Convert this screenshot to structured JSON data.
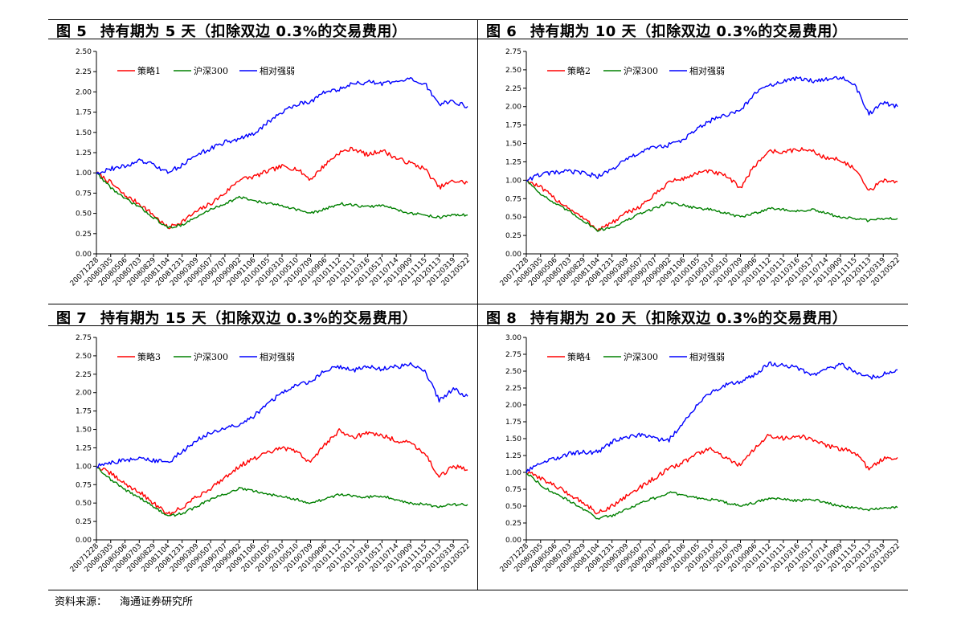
{
  "source": {
    "label": "资料来源：",
    "text": "海通证券研究所"
  },
  "series_colors": {
    "strategy": "#ff0000",
    "hs300": "#008000",
    "relative": "#0000ff"
  },
  "panels": [
    {
      "figure": "图 5",
      "title": "持有期为 5 天（扣除双边 0.3%的交易费用）"
    },
    {
      "figure": "图 6",
      "title": "持有期为 10 天（扣除双边 0.3%的交易费用）"
    },
    {
      "figure": "图 7",
      "title": "持有期为 15 天（扣除双边 0.3%的交易费用）"
    },
    {
      "figure": "图 8",
      "title": "持有期为 20 天（扣除双边 0.3%的交易费用）"
    }
  ],
  "chart_data": [
    {
      "type": "line",
      "title": "持有期为 5 天（扣除双边 0.3%的交易费用）",
      "x": [
        "20071228",
        "20080305",
        "20080506",
        "20080703",
        "20080829",
        "20081104",
        "20081231",
        "20090309",
        "20090507",
        "20090707",
        "20090902",
        "20091106",
        "20100105",
        "20100310",
        "20100510",
        "20100709",
        "20100906",
        "20101112",
        "20110111",
        "20110316",
        "20110517",
        "20110714",
        "20110909",
        "20111115",
        "20120113",
        "20120319",
        "20120522"
      ],
      "ylim": [
        0,
        2.5
      ],
      "yticks": [
        "0.00",
        "0.25",
        "0.50",
        "0.75",
        "1.00",
        "1.25",
        "1.50",
        "1.75",
        "2.00",
        "2.25",
        "2.50"
      ],
      "legend": "top-left",
      "grid": false,
      "series": [
        {
          "name": "策略1",
          "values": [
            1.0,
            0.88,
            0.72,
            0.62,
            0.48,
            0.32,
            0.4,
            0.52,
            0.62,
            0.75,
            0.92,
            0.95,
            1.02,
            1.08,
            1.05,
            0.92,
            1.1,
            1.25,
            1.3,
            1.22,
            1.28,
            1.18,
            1.12,
            1.05,
            0.82,
            0.9,
            0.88
          ]
        },
        {
          "name": "沪深300",
          "values": [
            1.0,
            0.82,
            0.68,
            0.58,
            0.45,
            0.32,
            0.36,
            0.45,
            0.55,
            0.62,
            0.7,
            0.66,
            0.62,
            0.6,
            0.55,
            0.5,
            0.55,
            0.62,
            0.6,
            0.58,
            0.6,
            0.55,
            0.5,
            0.48,
            0.45,
            0.48,
            0.48
          ]
        },
        {
          "name": "相对强弱",
          "values": [
            1.0,
            1.05,
            1.08,
            1.15,
            1.1,
            1.0,
            1.1,
            1.22,
            1.3,
            1.38,
            1.42,
            1.48,
            1.62,
            1.75,
            1.85,
            1.88,
            2.0,
            2.03,
            2.1,
            2.12,
            2.1,
            2.12,
            2.15,
            2.1,
            1.85,
            1.88,
            1.82
          ]
        }
      ]
    },
    {
      "type": "line",
      "title": "持有期为 10 天（扣除双边 0.3%的交易费用）",
      "x": [
        "20071228",
        "20080305",
        "20080506",
        "20080703",
        "20080829",
        "20081104",
        "20081231",
        "20090309",
        "20090507",
        "20090707",
        "20090902",
        "20091106",
        "20100105",
        "20100310",
        "20100510",
        "20100709",
        "20100906",
        "20101112",
        "20110111",
        "20110316",
        "20110517",
        "20110714",
        "20110909",
        "20111115",
        "20120113",
        "20120319",
        "20120522"
      ],
      "ylim": [
        0,
        2.75
      ],
      "yticks": [
        "0.00",
        "0.25",
        "0.50",
        "0.75",
        "1.00",
        "1.25",
        "1.50",
        "1.75",
        "2.00",
        "2.25",
        "2.50",
        "2.75"
      ],
      "legend": "top-left",
      "grid": false,
      "series": [
        {
          "name": "策略2",
          "values": [
            1.0,
            0.9,
            0.75,
            0.62,
            0.48,
            0.33,
            0.42,
            0.55,
            0.65,
            0.8,
            0.98,
            1.02,
            1.1,
            1.12,
            1.05,
            0.9,
            1.2,
            1.4,
            1.38,
            1.42,
            1.4,
            1.3,
            1.28,
            1.15,
            0.85,
            1.0,
            0.98
          ]
        },
        {
          "name": "沪深300",
          "values": [
            1.0,
            0.82,
            0.68,
            0.58,
            0.45,
            0.32,
            0.36,
            0.45,
            0.55,
            0.62,
            0.7,
            0.66,
            0.62,
            0.6,
            0.55,
            0.5,
            0.55,
            0.62,
            0.6,
            0.58,
            0.6,
            0.55,
            0.5,
            0.48,
            0.45,
            0.48,
            0.48
          ]
        },
        {
          "name": "相对强弱",
          "values": [
            1.0,
            1.08,
            1.1,
            1.12,
            1.1,
            1.05,
            1.15,
            1.28,
            1.38,
            1.45,
            1.48,
            1.55,
            1.7,
            1.82,
            1.88,
            1.95,
            2.18,
            2.28,
            2.35,
            2.38,
            2.35,
            2.38,
            2.4,
            2.3,
            1.9,
            2.05,
            2.0
          ]
        }
      ]
    },
    {
      "type": "line",
      "title": "持有期为 15 天（扣除双边 0.3%的交易费用）",
      "x": [
        "20071228",
        "20080305",
        "20080506",
        "20080703",
        "20080829",
        "20081104",
        "20081231",
        "20090309",
        "20090507",
        "20090707",
        "20090902",
        "20091106",
        "20100105",
        "20100310",
        "20100510",
        "20100709",
        "20100906",
        "20101112",
        "20110111",
        "20110316",
        "20110517",
        "20110714",
        "20110909",
        "20111115",
        "20120113",
        "20120319",
        "20120522"
      ],
      "ylim": [
        0,
        2.75
      ],
      "yticks": [
        "0.00",
        "0.25",
        "0.50",
        "0.75",
        "1.00",
        "1.25",
        "1.50",
        "1.75",
        "2.00",
        "2.25",
        "2.50",
        "2.75"
      ],
      "legend": "top-left",
      "grid": false,
      "series": [
        {
          "name": "策略3",
          "values": [
            1.0,
            0.9,
            0.76,
            0.65,
            0.5,
            0.34,
            0.44,
            0.58,
            0.7,
            0.85,
            1.0,
            1.1,
            1.18,
            1.25,
            1.2,
            1.05,
            1.3,
            1.48,
            1.4,
            1.45,
            1.42,
            1.35,
            1.32,
            1.18,
            0.85,
            1.0,
            0.95
          ]
        },
        {
          "name": "沪深300",
          "values": [
            1.0,
            0.82,
            0.68,
            0.58,
            0.45,
            0.32,
            0.36,
            0.45,
            0.55,
            0.62,
            0.7,
            0.66,
            0.62,
            0.6,
            0.55,
            0.5,
            0.55,
            0.62,
            0.6,
            0.58,
            0.6,
            0.55,
            0.5,
            0.48,
            0.45,
            0.48,
            0.48
          ]
        },
        {
          "name": "相对强弱",
          "values": [
            1.0,
            1.05,
            1.08,
            1.1,
            1.08,
            1.05,
            1.2,
            1.35,
            1.45,
            1.52,
            1.55,
            1.68,
            1.85,
            2.0,
            2.1,
            2.15,
            2.3,
            2.35,
            2.3,
            2.35,
            2.32,
            2.35,
            2.38,
            2.3,
            1.9,
            2.05,
            1.95
          ]
        }
      ]
    },
    {
      "type": "line",
      "title": "持有期为 20 天（扣除双边 0.3%的交易费用）",
      "x": [
        "20071228",
        "20080305",
        "20080506",
        "20080703",
        "20080829",
        "20081104",
        "20081231",
        "20090309",
        "20090507",
        "20090707",
        "20090902",
        "20091106",
        "20100105",
        "20100310",
        "20100510",
        "20100709",
        "20100906",
        "20101112",
        "20110111",
        "20110316",
        "20110517",
        "20110714",
        "20110909",
        "20111115",
        "20120113",
        "20120319",
        "20120522"
      ],
      "ylim": [
        0,
        3.0
      ],
      "yticks": [
        "0.00",
        "0.25",
        "0.50",
        "0.75",
        "1.00",
        "1.25",
        "1.50",
        "1.75",
        "2.00",
        "2.25",
        "2.50",
        "2.75",
        "3.00"
      ],
      "legend": "top-left",
      "grid": false,
      "series": [
        {
          "name": "策略4",
          "values": [
            1.0,
            0.92,
            0.8,
            0.68,
            0.55,
            0.4,
            0.5,
            0.65,
            0.78,
            0.92,
            1.05,
            1.15,
            1.28,
            1.35,
            1.2,
            1.1,
            1.35,
            1.55,
            1.5,
            1.55,
            1.48,
            1.4,
            1.35,
            1.3,
            1.05,
            1.2,
            1.22
          ]
        },
        {
          "name": "沪深300",
          "values": [
            1.0,
            0.82,
            0.68,
            0.58,
            0.45,
            0.32,
            0.36,
            0.45,
            0.55,
            0.62,
            0.7,
            0.66,
            0.62,
            0.6,
            0.55,
            0.5,
            0.55,
            0.62,
            0.6,
            0.58,
            0.6,
            0.55,
            0.5,
            0.48,
            0.45,
            0.48,
            0.48
          ]
        },
        {
          "name": "相对强弱",
          "values": [
            1.0,
            1.15,
            1.2,
            1.28,
            1.3,
            1.3,
            1.45,
            1.52,
            1.55,
            1.5,
            1.48,
            1.75,
            2.0,
            2.2,
            2.3,
            2.35,
            2.45,
            2.62,
            2.58,
            2.55,
            2.45,
            2.52,
            2.6,
            2.5,
            2.4,
            2.45,
            2.52
          ]
        }
      ]
    }
  ]
}
